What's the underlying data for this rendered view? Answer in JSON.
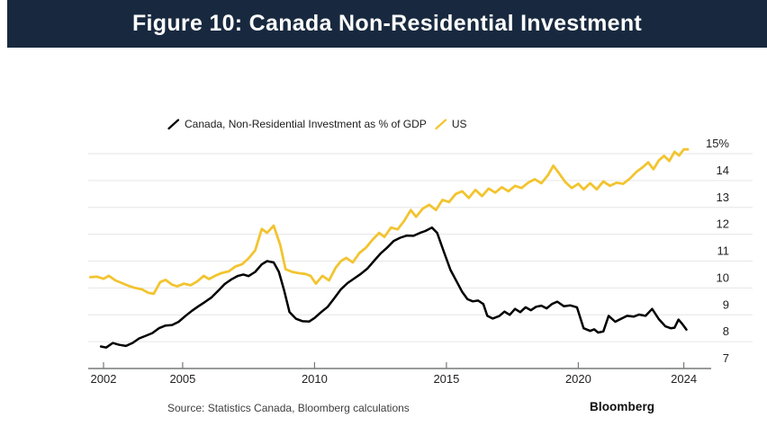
{
  "header": {
    "title": "Figure 10: Canada Non-Residential Investment",
    "bg_color": "#18293F",
    "text_color": "#FFFFFF"
  },
  "legend": {
    "items": [
      {
        "label": "Canada, Non-Residential Investment as % of GDP",
        "color": "#000000"
      },
      {
        "label": "US",
        "color": "#F2C430"
      }
    ]
  },
  "footer": {
    "source": "Source: Statistics Canada, Bloomberg calculations",
    "brand": "Bloomberg"
  },
  "chart_data": {
    "type": "line",
    "title": "Figure 10: Canada Non-Residential Investment",
    "xlabel": "",
    "ylabel": "",
    "xlim": [
      2001.4,
      2024.3
    ],
    "ylim": [
      7,
      15.5
    ],
    "grid": true,
    "legend_position": "top-center",
    "x_ticks": [
      2002,
      2005,
      2010,
      2015,
      2020,
      2024
    ],
    "y_ticks": [
      7,
      8,
      9,
      10,
      11,
      12,
      13,
      14,
      15
    ],
    "y_tick_labels": [
      "7",
      "8",
      "9",
      "10",
      "11",
      "12",
      "13",
      "14",
      "15%"
    ],
    "style": {
      "grid_color": "#E6E6E6",
      "axis_color": "#77787A",
      "tick_label_color": "#1F1F1F"
    },
    "series": [
      {
        "name": "Canada, Non-Residential Investment as % of GDP",
        "color": "#000000",
        "points": [
          [
            2001.9,
            7.82
          ],
          [
            2002.1,
            7.78
          ],
          [
            2002.35,
            7.95
          ],
          [
            2002.6,
            7.88
          ],
          [
            2002.85,
            7.84
          ],
          [
            2003.1,
            7.95
          ],
          [
            2003.35,
            8.12
          ],
          [
            2003.6,
            8.22
          ],
          [
            2003.85,
            8.32
          ],
          [
            2004.1,
            8.5
          ],
          [
            2004.35,
            8.6
          ],
          [
            2004.6,
            8.62
          ],
          [
            2004.85,
            8.74
          ],
          [
            2005.1,
            8.95
          ],
          [
            2005.35,
            9.15
          ],
          [
            2005.6,
            9.32
          ],
          [
            2005.85,
            9.48
          ],
          [
            2006.1,
            9.65
          ],
          [
            2006.35,
            9.9
          ],
          [
            2006.6,
            10.15
          ],
          [
            2006.85,
            10.32
          ],
          [
            2007.1,
            10.45
          ],
          [
            2007.3,
            10.5
          ],
          [
            2007.5,
            10.44
          ],
          [
            2007.75,
            10.6
          ],
          [
            2008.0,
            10.88
          ],
          [
            2008.2,
            11.0
          ],
          [
            2008.45,
            10.95
          ],
          [
            2008.65,
            10.6
          ],
          [
            2008.85,
            9.9
          ],
          [
            2009.05,
            9.1
          ],
          [
            2009.3,
            8.85
          ],
          [
            2009.55,
            8.76
          ],
          [
            2009.8,
            8.75
          ],
          [
            2010.0,
            8.88
          ],
          [
            2010.25,
            9.1
          ],
          [
            2010.5,
            9.3
          ],
          [
            2010.75,
            9.62
          ],
          [
            2011.0,
            9.95
          ],
          [
            2011.25,
            10.18
          ],
          [
            2011.5,
            10.35
          ],
          [
            2011.75,
            10.52
          ],
          [
            2012.0,
            10.72
          ],
          [
            2012.25,
            11.0
          ],
          [
            2012.5,
            11.28
          ],
          [
            2012.75,
            11.5
          ],
          [
            2013.0,
            11.75
          ],
          [
            2013.25,
            11.87
          ],
          [
            2013.5,
            11.95
          ],
          [
            2013.75,
            11.94
          ],
          [
            2014.0,
            12.05
          ],
          [
            2014.2,
            12.12
          ],
          [
            2014.45,
            12.25
          ],
          [
            2014.65,
            12.05
          ],
          [
            2014.9,
            11.35
          ],
          [
            2015.15,
            10.68
          ],
          [
            2015.4,
            10.22
          ],
          [
            2015.6,
            9.85
          ],
          [
            2015.8,
            9.58
          ],
          [
            2016.0,
            9.5
          ],
          [
            2016.2,
            9.53
          ],
          [
            2016.4,
            9.4
          ],
          [
            2016.55,
            8.96
          ],
          [
            2016.75,
            8.86
          ],
          [
            2017.0,
            8.95
          ],
          [
            2017.2,
            9.12
          ],
          [
            2017.4,
            9.0
          ],
          [
            2017.6,
            9.22
          ],
          [
            2017.8,
            9.1
          ],
          [
            2018.0,
            9.28
          ],
          [
            2018.2,
            9.17
          ],
          [
            2018.4,
            9.3
          ],
          [
            2018.6,
            9.34
          ],
          [
            2018.8,
            9.24
          ],
          [
            2019.0,
            9.4
          ],
          [
            2019.2,
            9.49
          ],
          [
            2019.45,
            9.32
          ],
          [
            2019.7,
            9.35
          ],
          [
            2019.95,
            9.28
          ],
          [
            2020.2,
            8.5
          ],
          [
            2020.45,
            8.4
          ],
          [
            2020.6,
            8.46
          ],
          [
            2020.75,
            8.34
          ],
          [
            2020.95,
            8.38
          ],
          [
            2021.15,
            8.96
          ],
          [
            2021.4,
            8.74
          ],
          [
            2021.6,
            8.84
          ],
          [
            2021.85,
            8.96
          ],
          [
            2022.1,
            8.93
          ],
          [
            2022.3,
            9.01
          ],
          [
            2022.55,
            8.96
          ],
          [
            2022.8,
            9.22
          ],
          [
            2023.05,
            8.84
          ],
          [
            2023.3,
            8.57
          ],
          [
            2023.5,
            8.5
          ],
          [
            2023.65,
            8.52
          ],
          [
            2023.8,
            8.82
          ],
          [
            2023.95,
            8.65
          ],
          [
            2024.1,
            8.45
          ]
        ]
      },
      {
        "name": "US",
        "color": "#F2C430",
        "points": [
          [
            2001.5,
            10.4
          ],
          [
            2001.75,
            10.42
          ],
          [
            2002.0,
            10.34
          ],
          [
            2002.2,
            10.45
          ],
          [
            2002.45,
            10.28
          ],
          [
            2002.7,
            10.18
          ],
          [
            2002.95,
            10.08
          ],
          [
            2003.2,
            10.0
          ],
          [
            2003.45,
            9.95
          ],
          [
            2003.7,
            9.82
          ],
          [
            2003.9,
            9.78
          ],
          [
            2004.15,
            10.22
          ],
          [
            2004.35,
            10.3
          ],
          [
            2004.6,
            10.12
          ],
          [
            2004.8,
            10.06
          ],
          [
            2005.05,
            10.16
          ],
          [
            2005.3,
            10.1
          ],
          [
            2005.55,
            10.24
          ],
          [
            2005.8,
            10.45
          ],
          [
            2006.0,
            10.33
          ],
          [
            2006.25,
            10.46
          ],
          [
            2006.5,
            10.56
          ],
          [
            2006.75,
            10.62
          ],
          [
            2007.0,
            10.8
          ],
          [
            2007.25,
            10.88
          ],
          [
            2007.5,
            11.1
          ],
          [
            2007.75,
            11.4
          ],
          [
            2008.0,
            12.2
          ],
          [
            2008.2,
            12.05
          ],
          [
            2008.45,
            12.32
          ],
          [
            2008.7,
            11.6
          ],
          [
            2008.9,
            10.7
          ],
          [
            2009.15,
            10.6
          ],
          [
            2009.4,
            10.55
          ],
          [
            2009.65,
            10.52
          ],
          [
            2009.85,
            10.45
          ],
          [
            2010.05,
            10.16
          ],
          [
            2010.3,
            10.45
          ],
          [
            2010.55,
            10.28
          ],
          [
            2010.8,
            10.75
          ],
          [
            2011.0,
            11.0
          ],
          [
            2011.2,
            11.12
          ],
          [
            2011.45,
            10.95
          ],
          [
            2011.7,
            11.3
          ],
          [
            2011.95,
            11.5
          ],
          [
            2012.2,
            11.8
          ],
          [
            2012.45,
            12.05
          ],
          [
            2012.65,
            11.9
          ],
          [
            2012.9,
            12.25
          ],
          [
            2013.15,
            12.18
          ],
          [
            2013.4,
            12.5
          ],
          [
            2013.65,
            12.9
          ],
          [
            2013.85,
            12.65
          ],
          [
            2014.1,
            12.95
          ],
          [
            2014.35,
            13.1
          ],
          [
            2014.6,
            12.9
          ],
          [
            2014.85,
            13.28
          ],
          [
            2015.1,
            13.2
          ],
          [
            2015.35,
            13.5
          ],
          [
            2015.6,
            13.6
          ],
          [
            2015.85,
            13.35
          ],
          [
            2016.1,
            13.65
          ],
          [
            2016.35,
            13.42
          ],
          [
            2016.6,
            13.7
          ],
          [
            2016.85,
            13.55
          ],
          [
            2017.1,
            13.75
          ],
          [
            2017.35,
            13.6
          ],
          [
            2017.6,
            13.8
          ],
          [
            2017.85,
            13.72
          ],
          [
            2018.1,
            13.92
          ],
          [
            2018.35,
            14.05
          ],
          [
            2018.6,
            13.9
          ],
          [
            2018.85,
            14.2
          ],
          [
            2019.05,
            14.55
          ],
          [
            2019.25,
            14.3
          ],
          [
            2019.5,
            13.95
          ],
          [
            2019.75,
            13.72
          ],
          [
            2020.0,
            13.88
          ],
          [
            2020.2,
            13.67
          ],
          [
            2020.45,
            13.9
          ],
          [
            2020.7,
            13.67
          ],
          [
            2020.95,
            13.97
          ],
          [
            2021.2,
            13.8
          ],
          [
            2021.45,
            13.92
          ],
          [
            2021.7,
            13.88
          ],
          [
            2021.95,
            14.07
          ],
          [
            2022.2,
            14.32
          ],
          [
            2022.45,
            14.5
          ],
          [
            2022.65,
            14.68
          ],
          [
            2022.85,
            14.42
          ],
          [
            2023.05,
            14.75
          ],
          [
            2023.25,
            14.92
          ],
          [
            2023.45,
            14.73
          ],
          [
            2023.65,
            15.07
          ],
          [
            2023.82,
            14.93
          ],
          [
            2024.0,
            15.16
          ],
          [
            2024.15,
            15.16
          ]
        ]
      }
    ]
  }
}
